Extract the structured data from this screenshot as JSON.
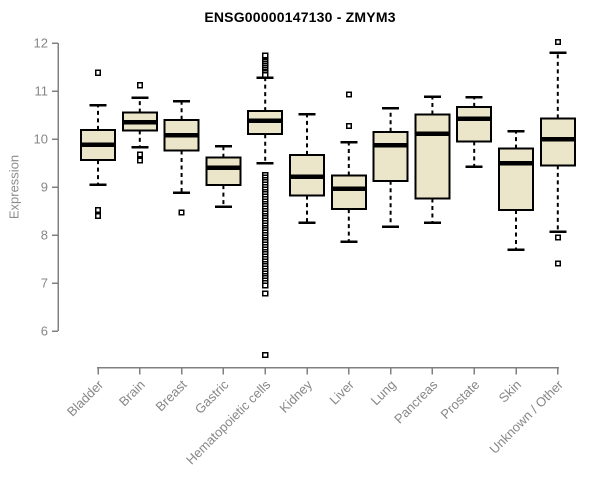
{
  "chart_data": {
    "type": "boxplot",
    "title": "ENSG00000147130 - ZMYM3",
    "ylabel": "Expression",
    "xlabel": "",
    "ylim": [
      6,
      12
    ],
    "yticks": [
      12,
      11,
      10,
      9,
      8,
      7,
      6
    ],
    "grid": false,
    "legend": null,
    "categories": [
      "Bladder",
      "Brain",
      "Breast",
      "Gastric",
      "Hematopoietic cells",
      "Kidney",
      "Liver",
      "Lung",
      "Pancreas",
      "Prostate",
      "Skin",
      "Unknown / Other"
    ],
    "series": [
      {
        "category": "Bladder",
        "whisker_low": 9.05,
        "q1": 9.56,
        "median": 9.88,
        "q3": 10.19,
        "whisker_high": 10.7,
        "outliers": [
          11.38,
          8.52,
          8.4
        ]
      },
      {
        "category": "Brain",
        "whisker_low": 9.83,
        "q1": 10.18,
        "median": 10.35,
        "q3": 10.55,
        "whisker_high": 10.86,
        "outliers": [
          11.12,
          9.68,
          9.55
        ]
      },
      {
        "category": "Breast",
        "whisker_low": 8.88,
        "q1": 9.76,
        "median": 10.08,
        "q3": 10.4,
        "whisker_high": 10.79,
        "outliers": [
          8.47
        ]
      },
      {
        "category": "Gastric",
        "whisker_low": 8.59,
        "q1": 9.04,
        "median": 9.4,
        "q3": 9.61,
        "whisker_high": 9.85,
        "outliers": []
      },
      {
        "category": "Hematopoietic cells",
        "whisker_low": 9.5,
        "q1": 10.1,
        "median": 10.38,
        "q3": 10.58,
        "whisker_high": 11.28,
        "outliers": [
          11.74,
          11.65,
          11.61,
          11.57,
          11.53,
          11.49,
          11.45,
          11.41,
          11.37,
          11.33,
          9.25,
          9.2,
          9.15,
          9.1,
          9.05,
          9.0,
          8.95,
          8.9,
          8.85,
          8.8,
          8.75,
          8.7,
          8.65,
          8.6,
          8.55,
          8.5,
          8.45,
          8.4,
          8.35,
          8.3,
          8.25,
          8.2,
          8.15,
          8.1,
          8.05,
          8.0,
          7.95,
          7.9,
          7.85,
          7.8,
          7.75,
          7.7,
          7.65,
          7.6,
          7.55,
          7.5,
          7.45,
          7.4,
          7.35,
          7.3,
          7.25,
          7.2,
          7.15,
          7.1,
          7.05,
          7.0,
          6.95,
          6.78,
          5.5
        ]
      },
      {
        "category": "Kidney",
        "whisker_low": 8.26,
        "q1": 8.82,
        "median": 9.21,
        "q3": 9.67,
        "whisker_high": 10.52,
        "outliers": []
      },
      {
        "category": "Liver",
        "whisker_low": 7.86,
        "q1": 8.54,
        "median": 8.96,
        "q3": 9.24,
        "whisker_high": 9.93,
        "outliers": [
          10.93,
          10.27
        ]
      },
      {
        "category": "Lung",
        "whisker_low": 8.17,
        "q1": 9.13,
        "median": 9.87,
        "q3": 10.15,
        "whisker_high": 10.64,
        "outliers": []
      },
      {
        "category": "Pancreas",
        "whisker_low": 8.26,
        "q1": 8.76,
        "median": 10.11,
        "q3": 10.51,
        "whisker_high": 10.88,
        "outliers": []
      },
      {
        "category": "Prostate",
        "whisker_low": 9.42,
        "q1": 9.95,
        "median": 10.42,
        "q3": 10.67,
        "whisker_high": 10.87,
        "outliers": []
      },
      {
        "category": "Skin",
        "whisker_low": 7.69,
        "q1": 8.52,
        "median": 9.5,
        "q3": 9.8,
        "whisker_high": 10.16,
        "outliers": []
      },
      {
        "category": "Unknown / Other",
        "whisker_low": 8.07,
        "q1": 9.45,
        "median": 9.99,
        "q3": 10.43,
        "whisker_high": 11.8,
        "outliers": [
          12.02,
          7.95,
          7.41
        ]
      }
    ],
    "colors": {
      "box_fill": "#EBE6CA",
      "box_stroke": "#000000",
      "median": "#000000",
      "axis": "#808080",
      "tick_label": "#878787",
      "title": "#000000",
      "background": "#ffffff"
    }
  }
}
